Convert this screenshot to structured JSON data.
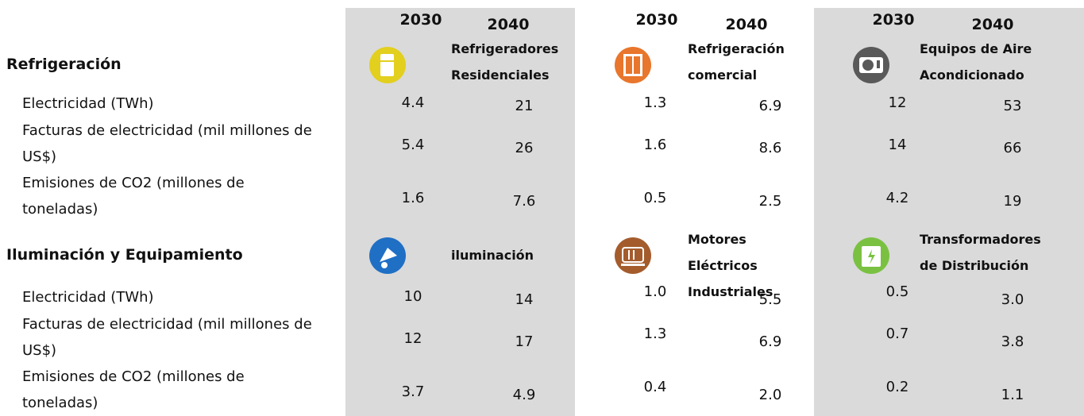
{
  "table": {
    "years": [
      "2030",
      "2040",
      "2030",
      "2040",
      "2030",
      "2040"
    ],
    "sections": [
      {
        "title": "Refrigeración",
        "products": [
          "Refrigeradores Residenciales",
          "Refrigeración comercial",
          "Equipos de Aire Acondicionado"
        ],
        "rows": [
          {
            "label": "Electricidad (TWh)",
            "values": [
              "4.4",
              "21",
              "1.3",
              "6.9",
              "12",
              "53"
            ]
          },
          {
            "label": "Facturas de electricidad (mil millones de US$)",
            "values": [
              "5.4",
              "26",
              "1.6",
              "8.6",
              "14",
              "66"
            ]
          },
          {
            "label": "Emisiones de CO2 (millones de toneladas)",
            "values": [
              "1.6",
              "7.6",
              "0.5",
              "2.5",
              "4.2",
              "19"
            ]
          }
        ]
      },
      {
        "title": "Iluminación y Equipamiento",
        "products": [
          "iluminación",
          "Motores Eléctricos Industriales",
          "Transformadores de Distribución"
        ],
        "rows": [
          {
            "label": "Electricidad (TWh)",
            "values": [
              "10",
              "14",
              "1.0",
              "5.5",
              "0.5",
              "3.0"
            ]
          },
          {
            "label": "Facturas de electricidad (mil millones de US$)",
            "values": [
              "12",
              "17",
              "1.3",
              "6.9",
              "0.7",
              "3.8"
            ]
          },
          {
            "label": "Emisiones de CO2 (millones de toneladas)",
            "values": [
              "3.7",
              "4.9",
              "0.4",
              "2.0",
              "0.2",
              "1.1"
            ]
          }
        ]
      }
    ]
  }
}
